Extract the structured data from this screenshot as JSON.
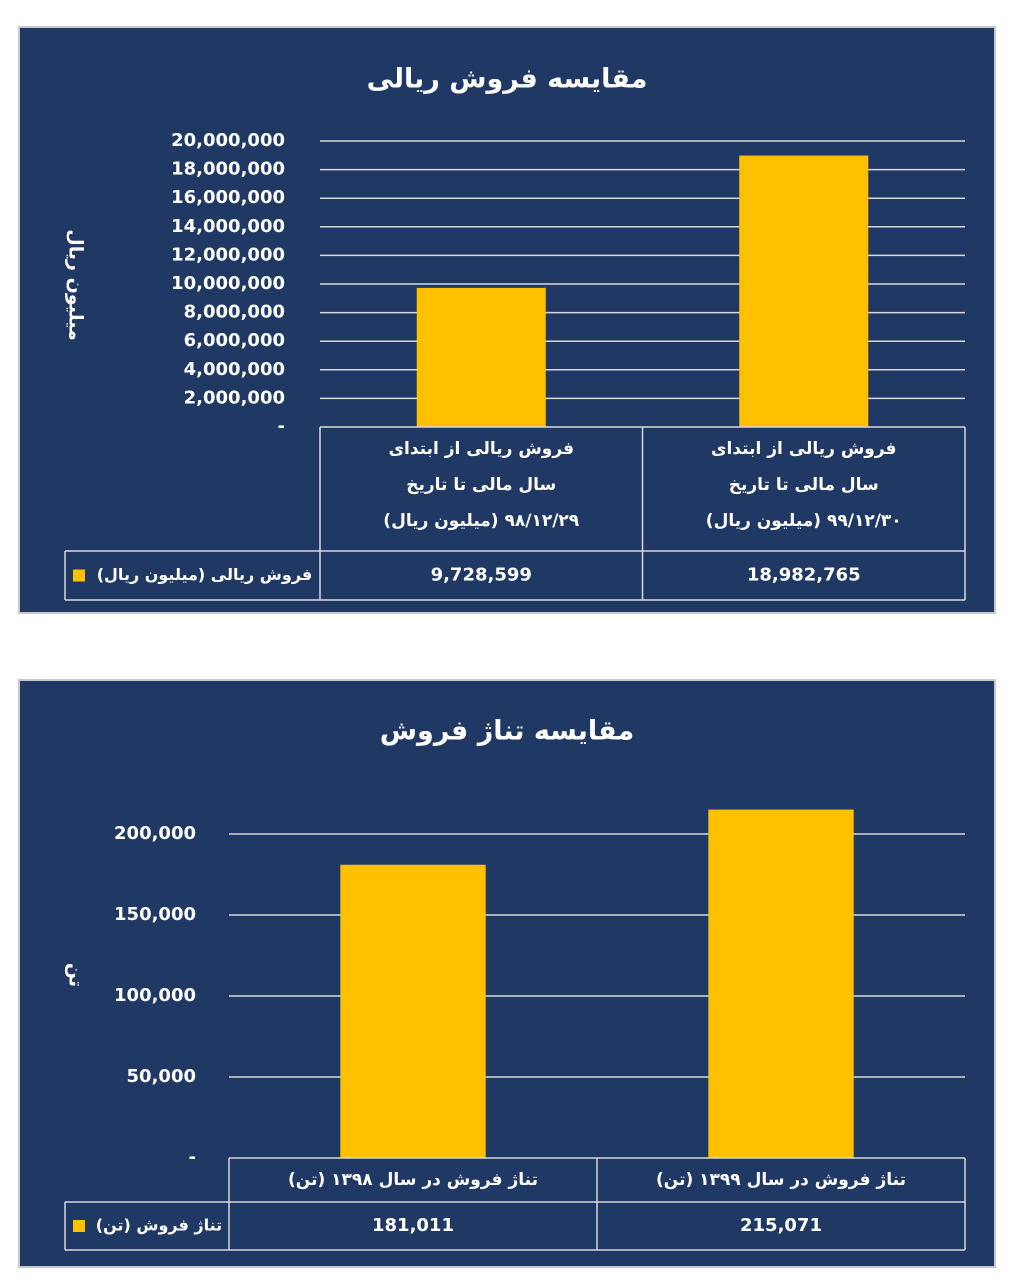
{
  "chart_data": [
    {
      "type": "bar",
      "title": "مقایسه فروش ریالی",
      "y_label": "میلیون ریال",
      "categories": [
        [
          "فروش ریالی از ابتدای",
          "سال مالی تا تاریخ",
          "۹۸/۱۲/۲۹ (میلیون ریال)"
        ],
        [
          "فروش ریالی از ابتدای",
          "سال مالی تا تاریخ",
          "۹۹/۱۲/۳۰ (میلیون ریال)"
        ]
      ],
      "series": [
        {
          "name": "فروش ریالی (میلیون ریال)",
          "color": "#ffc000",
          "values": [
            9728599,
            18982765
          ],
          "value_labels": [
            "9,728,599",
            "18,982,765"
          ]
        }
      ],
      "ylim": [
        0,
        20000000
      ],
      "yticks": [
        {
          "value": 0,
          "label": "-"
        },
        {
          "value": 2000000,
          "label": "2,000,000"
        },
        {
          "value": 4000000,
          "label": "4,000,000"
        },
        {
          "value": 6000000,
          "label": "6,000,000"
        },
        {
          "value": 8000000,
          "label": "8,000,000"
        },
        {
          "value": 10000000,
          "label": "10,000,000"
        },
        {
          "value": 12000000,
          "label": "12,000,000"
        },
        {
          "value": 14000000,
          "label": "14,000,000"
        },
        {
          "value": 16000000,
          "label": "16,000,000"
        },
        {
          "value": 18000000,
          "label": "18,000,000"
        },
        {
          "value": 20000000,
          "label": "20,000,000"
        }
      ],
      "grid": true
    },
    {
      "type": "bar",
      "title": "مقایسه تناژ فروش",
      "y_label": "تن",
      "categories": [
        [
          "تناژ فروش در سال ۱۳۹۸ (تن)"
        ],
        [
          "تناژ فروش در سال ۱۳۹۹ (تن)"
        ]
      ],
      "series": [
        {
          "name": "تناژ فروش (تن)",
          "color": "#ffc000",
          "values": [
            181011,
            215071
          ],
          "value_labels": [
            "181,011",
            "215,071"
          ]
        }
      ],
      "ylim": [
        0,
        220000
      ],
      "yticks": [
        {
          "value": 0,
          "label": "-"
        },
        {
          "value": 50000,
          "label": "50,000"
        },
        {
          "value": 100000,
          "label": "100,000"
        },
        {
          "value": 150000,
          "label": "150,000"
        },
        {
          "value": 200000,
          "label": "200,000"
        }
      ],
      "grid": true
    }
  ]
}
